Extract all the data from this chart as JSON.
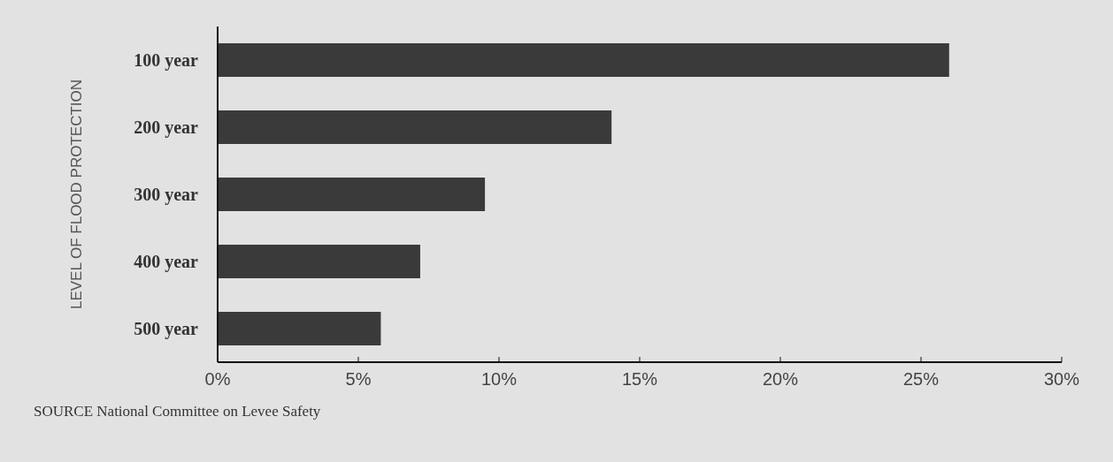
{
  "chart_data": {
    "type": "bar",
    "orientation": "horizontal",
    "ylabel": "LEVEL OF FLOOD PROTECTION",
    "categories": [
      "100 year",
      "200 year",
      "300 year",
      "400 year",
      "500 year"
    ],
    "values": [
      26,
      14,
      9.5,
      7.2,
      5.8
    ],
    "color": "#3a3a3a",
    "xlim": [
      0,
      30
    ],
    "xticks": [
      {
        "value": 0,
        "label": "0%"
      },
      {
        "value": 5,
        "label": "5%"
      },
      {
        "value": 10,
        "label": "10%"
      },
      {
        "value": 15,
        "label": "15%"
      },
      {
        "value": 20,
        "label": "20%"
      },
      {
        "value": 25,
        "label": "25%"
      },
      {
        "value": 30,
        "label": "30%"
      }
    ],
    "grid": false,
    "legend": false,
    "annotations": [
      "SOURCE National Committee on Levee Safety"
    ]
  }
}
